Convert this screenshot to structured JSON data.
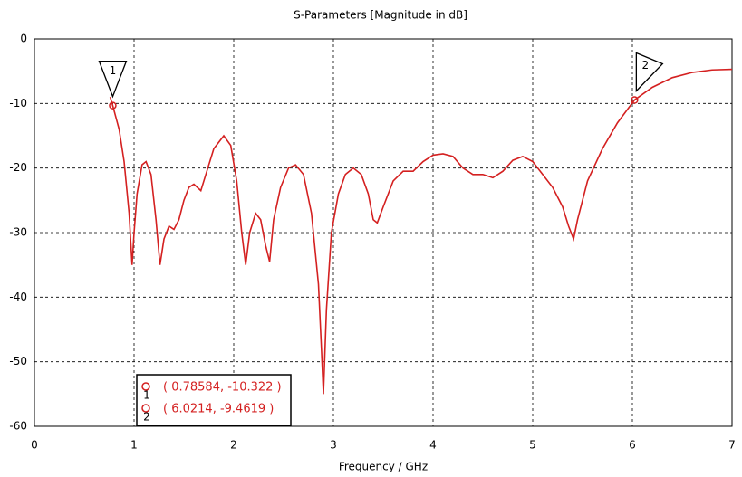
{
  "chart_data": {
    "type": "line",
    "title": "S-Parameters [Magnitude in dB]",
    "x_label": "Frequency / GHz",
    "xlim": [
      0,
      7
    ],
    "xticks": [
      0,
      1,
      2,
      3,
      4,
      5,
      6,
      7
    ],
    "ylim": [
      -60,
      0
    ],
    "yticks": [
      0,
      -10,
      -20,
      -30,
      -40,
      -50,
      -60
    ],
    "grid": true,
    "x": [
      0.76,
      0.78584,
      0.85,
      0.9,
      0.95,
      0.98,
      1.0,
      1.03,
      1.08,
      1.12,
      1.17,
      1.22,
      1.26,
      1.3,
      1.35,
      1.4,
      1.45,
      1.5,
      1.55,
      1.6,
      1.67,
      1.72,
      1.8,
      1.9,
      1.97,
      2.03,
      2.08,
      2.12,
      2.16,
      2.22,
      2.27,
      2.32,
      2.36,
      2.4,
      2.47,
      2.55,
      2.62,
      2.7,
      2.78,
      2.85,
      2.88,
      2.9,
      2.93,
      2.98,
      3.05,
      3.12,
      3.2,
      3.28,
      3.35,
      3.4,
      3.44,
      3.5,
      3.6,
      3.7,
      3.8,
      3.9,
      4.0,
      4.1,
      4.2,
      4.3,
      4.4,
      4.5,
      4.6,
      4.7,
      4.8,
      4.9,
      5.0,
      5.1,
      5.2,
      5.3,
      5.36,
      5.41,
      5.45,
      5.55,
      5.7,
      5.85,
      6.0214,
      6.2,
      6.4,
      6.6,
      6.8,
      7.0
    ],
    "series": [
      {
        "color": "#d42020",
        "values": [
          -9,
          -10.322,
          -14,
          -19,
          -27,
          -35,
          -30,
          -24,
          -19.5,
          -19,
          -21,
          -28,
          -35,
          -31,
          -29,
          -29.5,
          -28,
          -25,
          -23,
          -22.5,
          -23.5,
          -21,
          -17,
          -15,
          -16.5,
          -22,
          -30,
          -35,
          -30,
          -27,
          -28,
          -32,
          -34.5,
          -28,
          -23,
          -20,
          -19.5,
          -21,
          -27,
          -38,
          -48,
          -55,
          -42,
          -30,
          -24,
          -21,
          -20,
          -21,
          -24,
          -28,
          -28.5,
          -26,
          -22,
          -20.5,
          -20.5,
          -19,
          -18,
          -17.8,
          -18.2,
          -20,
          -21,
          -21,
          -21.5,
          -20.5,
          -18.8,
          -18.2,
          -19,
          -21,
          -23,
          -26,
          -29,
          -31,
          -28,
          -22,
          -17,
          -13,
          -9.4619,
          -7.5,
          -6,
          -5.2,
          -4.8,
          -4.7
        ]
      }
    ],
    "markers": [
      {
        "label": "1",
        "x": 0.78584,
        "y": -10.322,
        "readout": "( 0.78584, -10.322 )"
      },
      {
        "label": "2",
        "x": 6.0214,
        "y": -9.4619,
        "readout": "( 6.0214, -9.4619 )"
      }
    ]
  }
}
